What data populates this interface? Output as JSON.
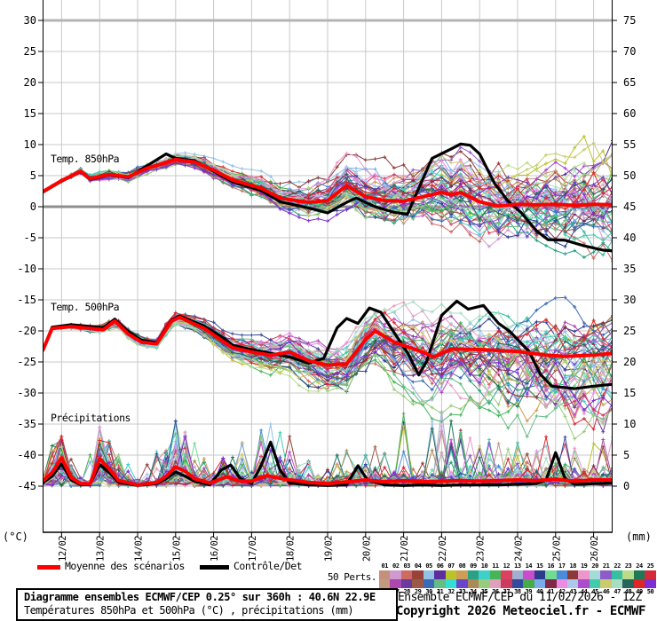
{
  "plot": {
    "left_axis_unit": "(°C)",
    "right_axis_unit": "(mm)"
  },
  "legend": {
    "mean_label": "Moyenne des scénarios",
    "mean_color": "#ff0000",
    "control_label": "Contrôle/Det",
    "control_color": "#000000",
    "perts_label": "50 Perts."
  },
  "perts": {
    "count": 50,
    "colors": [
      "#c4907c",
      "#cf9ad0",
      "#cd6a62",
      "#99423a",
      "#92c2e4",
      "#5b2d9e",
      "#bcc32a",
      "#cf9d55",
      "#2ba184",
      "#3fd0cb",
      "#46b457",
      "#dd4060",
      "#9fb0d0",
      "#c84ccc",
      "#2c3c8c",
      "#72db92",
      "#4b8bda",
      "#8c3a38",
      "#ec96cc",
      "#a6dcd8",
      "#8e5cc8",
      "#39bfa0",
      "#b8dc8a",
      "#1d7a56",
      "#d62a38",
      "#c39a80",
      "#ad46ad",
      "#6a3a9c",
      "#9a5a48",
      "#3a6ab8",
      "#63bd85",
      "#35ded2",
      "#6846cc",
      "#ab8a58",
      "#98cc7d",
      "#dfa0bd",
      "#cc3a60",
      "#344a9a",
      "#44ad48",
      "#7aabea",
      "#84284a",
      "#ea8ce2",
      "#abc8ea",
      "#ad4cc8",
      "#43ccab",
      "#cbca6d",
      "#a8dcc3",
      "#25655c",
      "#de2626",
      "#7c2ed2"
    ]
  },
  "footer": {
    "box_title": "Diagramme ensembles ECMWF/CEP 0.25° sur 360h : 40.6N 22.9E",
    "box_subtitle": "Températures 850hPa et 500hPa (°C) , précipitations (mm)",
    "run_info": "Ensemble ECMWF/CEP du 11/02/2026 - 12Z",
    "copyright": "Copyright 2026 Meteociel.fr - ECMWF"
  },
  "chart_data": {
    "type": "line",
    "title": "Diagramme ensembles ECMWF/CEP 0.25° sur 360h : 40.6N 22.9E",
    "subtitle": "Températures 850hPa et 500hPa (°C) , précipitations (mm)",
    "run": "Ensemble ECMWF/CEP du 11/02/2026 - 12Z",
    "members": 50,
    "x": {
      "start": "11/02 12Z",
      "hours": 360,
      "days": 15,
      "tick_labels": [
        "12/02",
        "13/02",
        "14/02",
        "15/02",
        "16/02",
        "17/02",
        "18/02",
        "19/02",
        "20/02",
        "21/02",
        "22/02",
        "23/02",
        "24/02",
        "25/02",
        "26/02"
      ]
    },
    "y_left": {
      "label": "°C",
      "range": [
        -45,
        30
      ],
      "step": 5
    },
    "y_right": {
      "label": "mm",
      "range": [
        0,
        75
      ],
      "step": 5
    },
    "grid": true,
    "legend_position": "bottom",
    "sections": [
      {
        "name": "Temp. 850hPa",
        "unit": "°C",
        "axis": "left",
        "mean": [
          [
            0,
            2.4
          ],
          [
            0.5,
            4.2
          ],
          [
            1,
            5.7
          ],
          [
            1.25,
            4.5
          ],
          [
            1.75,
            5.2
          ],
          [
            2.25,
            4.8
          ],
          [
            2.75,
            6.2
          ],
          [
            3.5,
            7.6
          ],
          [
            4,
            7.2
          ],
          [
            4.5,
            5.9
          ],
          [
            5,
            4.3
          ],
          [
            5.75,
            3.0
          ],
          [
            6.25,
            1.4
          ],
          [
            7,
            0.7
          ],
          [
            7.5,
            1.0
          ],
          [
            8,
            3.4
          ],
          [
            8.5,
            1.6
          ],
          [
            9,
            1.0
          ],
          [
            9.5,
            0.9
          ],
          [
            10,
            1.6
          ],
          [
            10.5,
            2.3
          ],
          [
            10.75,
            1.9
          ],
          [
            11,
            2.3
          ],
          [
            11.5,
            0.8
          ],
          [
            12,
            0.1
          ],
          [
            12.5,
            0.4
          ],
          [
            13,
            0.3
          ],
          [
            13.5,
            0.4
          ],
          [
            14,
            0.2
          ],
          [
            14.5,
            0.4
          ],
          [
            15,
            0.3
          ]
        ],
        "control": [
          [
            0,
            2.3
          ],
          [
            0.5,
            4.1
          ],
          [
            1,
            5.6
          ],
          [
            1.25,
            4.4
          ],
          [
            1.75,
            5.1
          ],
          [
            2.25,
            4.7
          ],
          [
            2.75,
            6.6
          ],
          [
            3.25,
            8.5
          ],
          [
            3.5,
            7.8
          ],
          [
            4,
            7.4
          ],
          [
            4.5,
            5.7
          ],
          [
            5,
            4.0
          ],
          [
            5.75,
            2.6
          ],
          [
            6.25,
            0.8
          ],
          [
            7,
            -0.2
          ],
          [
            7.5,
            -1.0
          ],
          [
            8,
            0.7
          ],
          [
            8.25,
            1.4
          ],
          [
            8.75,
            0.0
          ],
          [
            9.25,
            -0.9
          ],
          [
            9.6,
            -1.2
          ],
          [
            9.9,
            3.0
          ],
          [
            10.25,
            7.8
          ],
          [
            10.75,
            9.3
          ],
          [
            11,
            10.1
          ],
          [
            11.25,
            9.9
          ],
          [
            11.5,
            8.5
          ],
          [
            11.9,
            3.7
          ],
          [
            12.25,
            0.9
          ],
          [
            12.6,
            -1.0
          ],
          [
            13,
            -3.9
          ],
          [
            13.3,
            -5.3
          ],
          [
            13.75,
            -5.4
          ],
          [
            14.25,
            -6.3
          ],
          [
            14.75,
            -7.0
          ],
          [
            15,
            -7.1
          ]
        ],
        "spread_half_width": [
          [
            0,
            0.4
          ],
          [
            1,
            0.7
          ],
          [
            2,
            0.9
          ],
          [
            3,
            1.1
          ],
          [
            4,
            1.4
          ],
          [
            5,
            1.9
          ],
          [
            6,
            2.6
          ],
          [
            7,
            3.6
          ],
          [
            8,
            4.6
          ],
          [
            9,
            5.2
          ],
          [
            10,
            6.0
          ],
          [
            11,
            6.8
          ],
          [
            12,
            7.2
          ],
          [
            13,
            7.8
          ],
          [
            14,
            8.8
          ],
          [
            15,
            10.0
          ]
        ]
      },
      {
        "name": "Temp. 500hPa",
        "unit": "°C",
        "axis": "left",
        "mean": [
          [
            0,
            -23.2
          ],
          [
            0.25,
            -19.6
          ],
          [
            0.75,
            -19.3
          ],
          [
            1.25,
            -19.6
          ],
          [
            1.6,
            -19.8
          ],
          [
            1.9,
            -18.4
          ],
          [
            2.25,
            -20.5
          ],
          [
            2.6,
            -21.8
          ],
          [
            3,
            -22.1
          ],
          [
            3.4,
            -18.4
          ],
          [
            3.6,
            -17.8
          ],
          [
            4.25,
            -19.6
          ],
          [
            4.75,
            -21.7
          ],
          [
            5,
            -22.7
          ],
          [
            5.5,
            -23.4
          ],
          [
            6,
            -23.9
          ],
          [
            6.5,
            -23.4
          ],
          [
            7,
            -24.8
          ],
          [
            7.5,
            -25.5
          ],
          [
            8,
            -25.3
          ],
          [
            8.5,
            -21.4
          ],
          [
            8.75,
            -20.0
          ],
          [
            9.25,
            -21.8
          ],
          [
            10,
            -23.4
          ],
          [
            10.3,
            -24.2
          ],
          [
            10.75,
            -22.9
          ],
          [
            11.5,
            -23.0
          ],
          [
            12.5,
            -23.3
          ],
          [
            13.25,
            -23.9
          ],
          [
            13.75,
            -24.1
          ],
          [
            14.5,
            -23.9
          ],
          [
            15,
            -23.6
          ]
        ],
        "control": [
          [
            0,
            -23.2
          ],
          [
            0.25,
            -19.4
          ],
          [
            0.75,
            -19.0
          ],
          [
            1.25,
            -19.3
          ],
          [
            1.6,
            -19.5
          ],
          [
            1.9,
            -18.1
          ],
          [
            2.25,
            -20.1
          ],
          [
            2.6,
            -21.5
          ],
          [
            3,
            -21.9
          ],
          [
            3.4,
            -18.2
          ],
          [
            3.6,
            -17.6
          ],
          [
            4.25,
            -19.2
          ],
          [
            4.75,
            -21.1
          ],
          [
            5,
            -22.3
          ],
          [
            5.5,
            -23.0
          ],
          [
            6,
            -23.6
          ],
          [
            6.5,
            -24.2
          ],
          [
            7,
            -25.2
          ],
          [
            7.4,
            -24.4
          ],
          [
            7.75,
            -19.5
          ],
          [
            8,
            -18.0
          ],
          [
            8.3,
            -18.8
          ],
          [
            8.6,
            -16.3
          ],
          [
            8.9,
            -17.0
          ],
          [
            9.2,
            -19.8
          ],
          [
            9.6,
            -23.5
          ],
          [
            9.9,
            -27.1
          ],
          [
            10.1,
            -25.0
          ],
          [
            10.5,
            -17.5
          ],
          [
            10.9,
            -15.2
          ],
          [
            11.2,
            -16.5
          ],
          [
            11.6,
            -15.9
          ],
          [
            12,
            -18.8
          ],
          [
            12.3,
            -20.1
          ],
          [
            12.8,
            -23.3
          ],
          [
            13.1,
            -27.0
          ],
          [
            13.4,
            -28.9
          ],
          [
            14,
            -29.3
          ],
          [
            14.5,
            -28.9
          ],
          [
            15,
            -28.6
          ]
        ],
        "spread_half_width": [
          [
            0,
            0.5
          ],
          [
            1,
            0.8
          ],
          [
            2,
            1.0
          ],
          [
            3,
            1.1
          ],
          [
            4,
            1.5
          ],
          [
            5,
            2.2
          ],
          [
            6,
            3.0
          ],
          [
            7,
            4.2
          ],
          [
            8,
            5.2
          ],
          [
            9,
            6.0
          ],
          [
            10,
            7.0
          ],
          [
            11,
            7.2
          ],
          [
            12,
            7.4
          ],
          [
            13,
            7.6
          ],
          [
            14,
            7.8
          ],
          [
            15,
            8.2
          ]
        ]
      },
      {
        "name": "Précipitations",
        "unit": "mm",
        "axis": "right",
        "mean": [
          [
            0,
            0.8
          ],
          [
            0.25,
            2.2
          ],
          [
            0.5,
            4.6
          ],
          [
            0.75,
            1.4
          ],
          [
            1,
            0.4
          ],
          [
            1.25,
            0.4
          ],
          [
            1.5,
            4.4
          ],
          [
            1.75,
            2.8
          ],
          [
            2,
            0.9
          ],
          [
            2.5,
            0.2
          ],
          [
            3,
            0.6
          ],
          [
            3.25,
            1.6
          ],
          [
            3.5,
            3.1
          ],
          [
            3.75,
            2.4
          ],
          [
            4,
            1.2
          ],
          [
            4.4,
            0.5
          ],
          [
            4.85,
            1.5
          ],
          [
            5.2,
            0.8
          ],
          [
            5.5,
            0.8
          ],
          [
            5.9,
            1.7
          ],
          [
            6.3,
            1.2
          ],
          [
            7,
            0.6
          ],
          [
            7.5,
            0.4
          ],
          [
            8,
            0.7
          ],
          [
            8.5,
            1.0
          ],
          [
            9,
            0.7
          ],
          [
            9.5,
            0.9
          ],
          [
            10,
            0.7
          ],
          [
            10.5,
            0.8
          ],
          [
            11,
            0.9
          ],
          [
            11.5,
            0.8
          ],
          [
            12,
            0.9
          ],
          [
            12.5,
            1.0
          ],
          [
            13,
            0.9
          ],
          [
            13.5,
            1.1
          ],
          [
            14,
            0.8
          ],
          [
            14.5,
            1.0
          ],
          [
            15,
            1.0
          ]
        ],
        "control": [
          [
            0,
            0.5
          ],
          [
            0.25,
            1.6
          ],
          [
            0.5,
            3.6
          ],
          [
            0.75,
            1.0
          ],
          [
            1,
            0.2
          ],
          [
            1.25,
            0.3
          ],
          [
            1.5,
            3.5
          ],
          [
            1.75,
            2.2
          ],
          [
            2,
            0.6
          ],
          [
            2.5,
            0.1
          ],
          [
            3,
            0.4
          ],
          [
            3.25,
            1.2
          ],
          [
            3.5,
            2.3
          ],
          [
            3.75,
            1.6
          ],
          [
            4,
            0.8
          ],
          [
            4.4,
            0.2
          ],
          [
            4.7,
            2.6
          ],
          [
            4.95,
            3.4
          ],
          [
            5.2,
            1.2
          ],
          [
            5.5,
            0.4
          ],
          [
            5.75,
            3.3
          ],
          [
            6,
            7.1
          ],
          [
            6.25,
            2.6
          ],
          [
            6.5,
            0.5
          ],
          [
            7,
            0.2
          ],
          [
            7.5,
            0.1
          ],
          [
            8,
            0.2
          ],
          [
            8.3,
            3.3
          ],
          [
            8.55,
            1.0
          ],
          [
            9,
            0.2
          ],
          [
            9.5,
            0.1
          ],
          [
            10,
            0.2
          ],
          [
            10.5,
            0.1
          ],
          [
            11,
            0.2
          ],
          [
            11.5,
            0.2
          ],
          [
            12,
            0.2
          ],
          [
            12.5,
            0.3
          ],
          [
            13,
            0.4
          ],
          [
            13.25,
            1.0
          ],
          [
            13.5,
            5.4
          ],
          [
            13.75,
            1.2
          ],
          [
            14,
            0.3
          ],
          [
            14.5,
            0.4
          ],
          [
            15,
            0.5
          ]
        ],
        "member_max": [
          [
            0,
            5
          ],
          [
            0.5,
            8
          ],
          [
            1,
            3
          ],
          [
            1.5,
            9.5
          ],
          [
            2,
            5
          ],
          [
            2.5,
            2
          ],
          [
            3,
            6
          ],
          [
            3.5,
            10.5
          ],
          [
            4,
            7
          ],
          [
            4.5,
            3
          ],
          [
            5,
            6
          ],
          [
            5.5,
            8
          ],
          [
            6,
            10
          ],
          [
            6.5,
            8
          ],
          [
            7,
            4
          ],
          [
            7.5,
            4
          ],
          [
            8,
            6
          ],
          [
            8.5,
            6
          ],
          [
            9,
            7
          ],
          [
            9.5,
            13
          ],
          [
            10,
            11
          ],
          [
            10.5,
            12
          ],
          [
            11,
            9
          ],
          [
            11.5,
            8
          ],
          [
            12,
            7
          ],
          [
            12.5,
            8
          ],
          [
            13,
            8
          ],
          [
            13.5,
            9
          ],
          [
            14,
            9
          ],
          [
            14.5,
            7
          ],
          [
            15,
            8
          ]
        ]
      }
    ]
  }
}
